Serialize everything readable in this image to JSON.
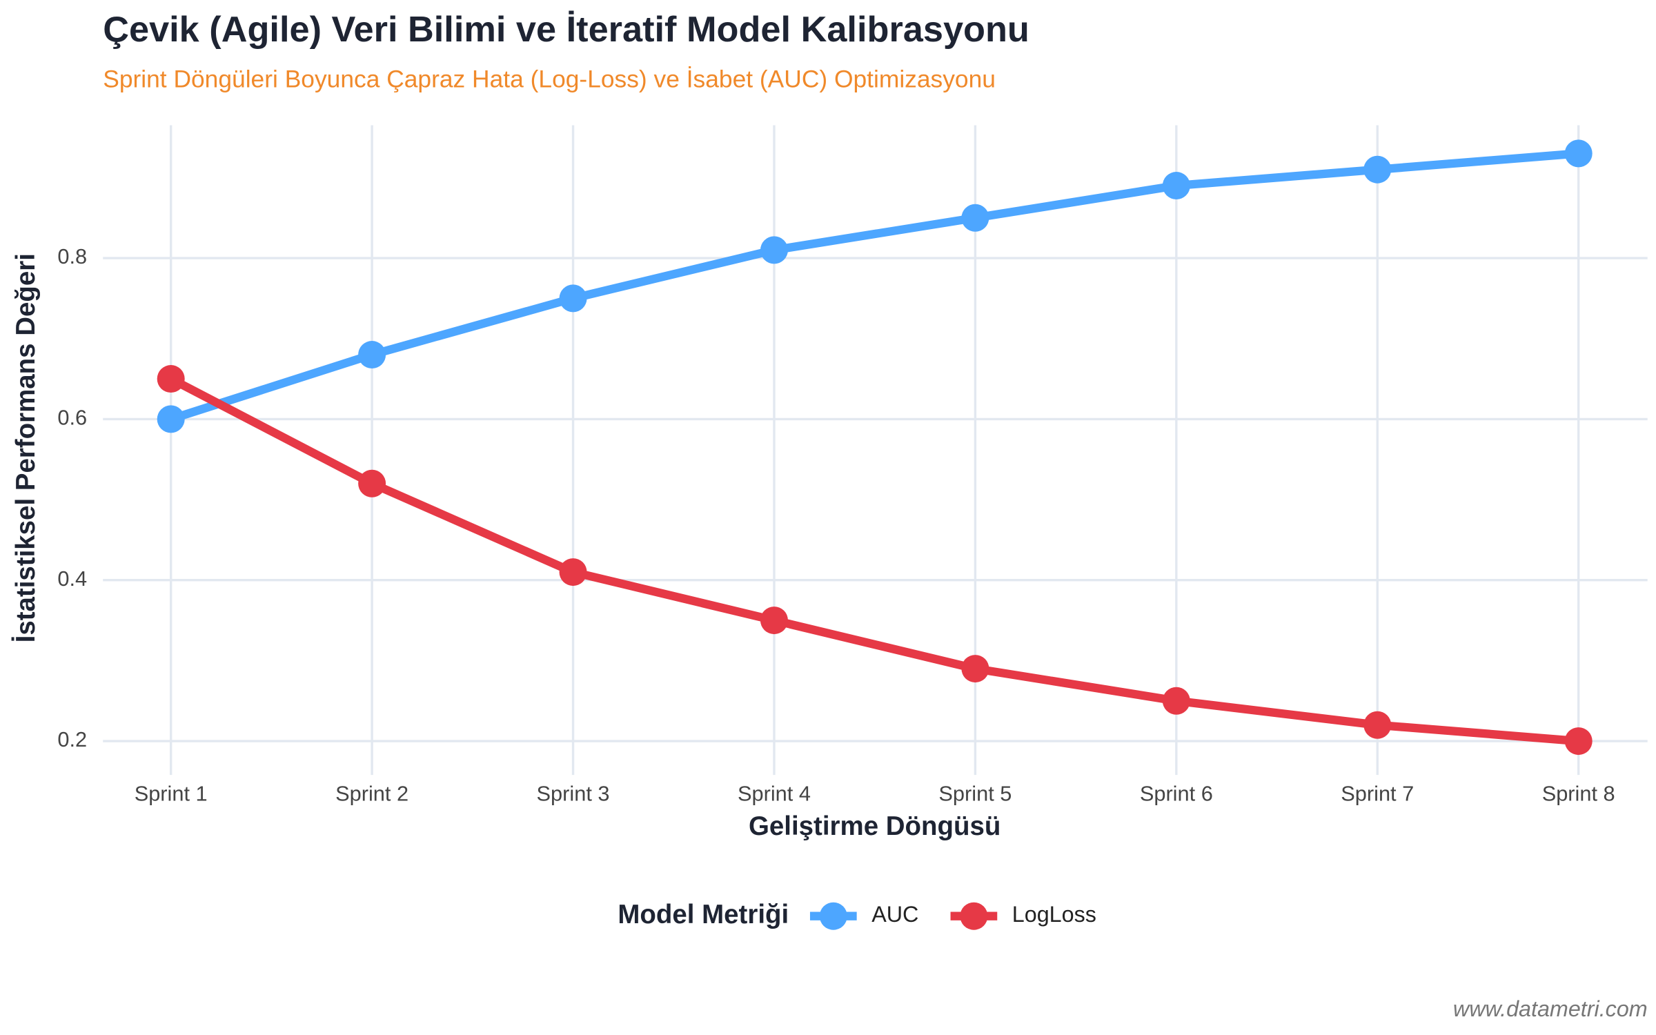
{
  "chart_data": {
    "type": "line",
    "title": "Çevik (Agile) Veri Bilimi ve İteratif Model Kalibrasyonu",
    "subtitle": "Sprint Döngüleri Boyunca Çapraz Hata (Log-Loss) ve İsabet (AUC) Optimizasyonu",
    "x_label": "Geliştirme Döngüsü",
    "y_label": "İstatistiksel Performans Değeri",
    "legend_title": "Model Metriği",
    "caption": "www.datametri.com",
    "categories": [
      "Sprint 1",
      "Sprint 2",
      "Sprint 3",
      "Sprint 4",
      "Sprint 5",
      "Sprint 6",
      "Sprint 7",
      "Sprint 8"
    ],
    "series": [
      {
        "name": "AUC",
        "color": "#4da6ff",
        "values": [
          0.6,
          0.68,
          0.75,
          0.81,
          0.85,
          0.89,
          0.91,
          0.93
        ]
      },
      {
        "name": "LogLoss",
        "color": "#e63946",
        "values": [
          0.65,
          0.52,
          0.41,
          0.35,
          0.29,
          0.25,
          0.22,
          0.2
        ]
      }
    ],
    "ylim": [
      0.158,
      0.965
    ],
    "yticks": [
      0.2,
      0.4,
      0.6,
      0.8
    ],
    "grid": true,
    "legend_position": "bottom"
  }
}
